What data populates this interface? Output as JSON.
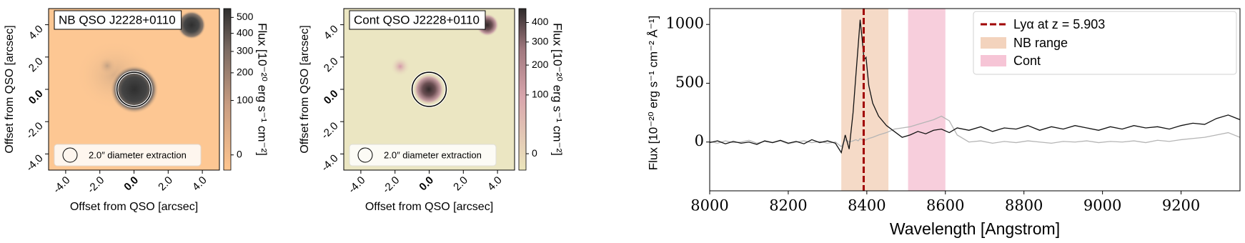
{
  "chart_data": [
    {
      "type": "image",
      "title": "NB QSO J2228+0110",
      "xlabel": "Offset from QSO [arcsec]",
      "ylabel": "Offset from QSO [arcsec]",
      "xlim": [
        -5,
        5
      ],
      "ylim": [
        -5,
        5
      ],
      "xticks": [
        {
          "value": -4,
          "label": "-4.0"
        },
        {
          "value": -2,
          "label": "-2.0"
        },
        {
          "value": 0,
          "label": "0.0"
        },
        {
          "value": 2,
          "label": "2.0"
        },
        {
          "value": 4,
          "label": "4.0"
        }
      ],
      "yticks": [
        {
          "value": -4,
          "label": "-4.0"
        },
        {
          "value": -2,
          "label": "-2.0"
        },
        {
          "value": 0,
          "label": "0.0"
        },
        {
          "value": 2,
          "label": "2.0"
        },
        {
          "value": 4,
          "label": "4.0"
        }
      ],
      "aperture_diameter": 2,
      "aperture_label": "2.0″ diameter extraction",
      "colorbar": {
        "label": "Flux [10⁻²⁰ erg s⁻¹ cm⁻²]",
        "scale": "sqrt",
        "clim": [
          -5,
          560
        ],
        "ticks": [
          0,
          100,
          200,
          300,
          400,
          500
        ]
      }
    },
    {
      "type": "image",
      "title": "Cont QSO J2228+0110",
      "xlabel": "Offset from QSO [arcsec]",
      "ylabel": "Offset from QSO [arcsec]",
      "xlim": [
        -5,
        5
      ],
      "ylim": [
        -5,
        5
      ],
      "xticks": [
        {
          "value": -4,
          "label": "-4.0"
        },
        {
          "value": -2,
          "label": "-2.0"
        },
        {
          "value": 0,
          "label": "0.0"
        },
        {
          "value": 2,
          "label": "2.0"
        },
        {
          "value": 4,
          "label": "4.0"
        }
      ],
      "yticks": [
        {
          "value": -4,
          "label": "-4.0"
        },
        {
          "value": -2,
          "label": "-2.0"
        },
        {
          "value": 0,
          "label": "0.0"
        },
        {
          "value": 2,
          "label": "2.0"
        },
        {
          "value": 4,
          "label": "4.0"
        }
      ],
      "aperture_diameter": 2,
      "aperture_label": "2.0″ diameter extraction",
      "colorbar": {
        "label": "Flux [10⁻²⁰ erg s⁻¹ cm⁻²]",
        "scale": "sqrt",
        "clim": [
          -5,
          480
        ],
        "ticks": [
          0,
          100,
          200,
          300,
          400
        ]
      }
    },
    {
      "type": "line",
      "xlabel": "Wavelength [Angstrom]",
      "ylabel": "Flux [10⁻²⁰ erg s⁻¹ cm⁻² Å⁻¹]",
      "xlim": [
        8000,
        9350
      ],
      "ylim": [
        -415,
        1135
      ],
      "xticks": [
        8000,
        8200,
        8400,
        8600,
        8800,
        9000,
        9200
      ],
      "yticks": [
        0,
        500,
        1000
      ],
      "x": [
        8000,
        8020,
        8040,
        8060,
        8080,
        8100,
        8120,
        8140,
        8160,
        8180,
        8200,
        8220,
        8240,
        8260,
        8280,
        8300,
        8320,
        8335,
        8345,
        8355,
        8365,
        8372,
        8378,
        8383,
        8388,
        8393,
        8398,
        8405,
        8415,
        8430,
        8450,
        8470,
        8490,
        8510,
        8530,
        8550,
        8570,
        8590,
        8610,
        8630,
        8660,
        8690,
        8720,
        8750,
        8780,
        8810,
        8840,
        8870,
        8900,
        8930,
        8960,
        8990,
        9020,
        9050,
        9080,
        9110,
        9140,
        9170,
        9200,
        9230,
        9260,
        9290,
        9320,
        9350
      ],
      "series": [
        {
          "color": "#b5b5b5",
          "values": [
            5,
            -10,
            10,
            -5,
            0,
            15,
            -10,
            5,
            -5,
            10,
            -15,
            0,
            10,
            -5,
            5,
            -10,
            0,
            -40,
            20,
            0,
            10,
            20,
            10,
            30,
            20,
            10,
            20,
            30,
            40,
            60,
            80,
            110,
            120,
            130,
            150,
            170,
            190,
            220,
            180,
            60,
            0,
            10,
            -10,
            5,
            -5,
            10,
            0,
            -10,
            5,
            0,
            10,
            -5,
            5,
            0,
            10,
            -5,
            15,
            5,
            20,
            30,
            40,
            60,
            80,
            40
          ]
        },
        {
          "color": "#111111",
          "values": [
            -5,
            10,
            -15,
            5,
            -10,
            0,
            -20,
            10,
            -5,
            15,
            -10,
            5,
            -15,
            20,
            -5,
            10,
            -10,
            -90,
            60,
            -60,
            250,
            560,
            820,
            1040,
            880,
            700,
            720,
            480,
            330,
            220,
            140,
            90,
            40,
            60,
            90,
            70,
            100,
            110,
            80,
            120,
            100,
            130,
            90,
            120,
            110,
            140,
            100,
            130,
            110,
            140,
            120,
            100,
            130,
            110,
            140,
            120,
            130,
            110,
            140,
            160,
            150,
            200,
            230,
            190
          ]
        }
      ],
      "lya": {
        "x": 8392,
        "label": "Lyα at z = 5.903",
        "color": "#a00000"
      },
      "spans": [
        {
          "label": "NB range",
          "range": [
            8335,
            8455
          ],
          "color": "#f3d3bd"
        },
        {
          "label": "Cont",
          "range": [
            8505,
            8600
          ],
          "color": "#f6c5d6"
        }
      ]
    }
  ]
}
